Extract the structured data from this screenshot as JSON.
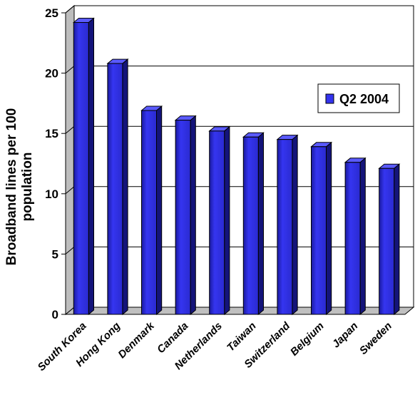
{
  "chart_data": {
    "type": "bar",
    "title": "",
    "xlabel": "",
    "ylabel": "Broadband lines per 100 population",
    "ylabel_lines": [
      "Broadband lines per 100",
      "population"
    ],
    "ylim": [
      0,
      25
    ],
    "yticks": [
      "0",
      "5",
      "10",
      "15",
      "20",
      "25"
    ],
    "grid": true,
    "legend_position": "right",
    "categories": [
      "South Korea",
      "Hong Kong",
      "Denmark",
      "Canada",
      "Netherlands",
      "Taiwan",
      "Switzerland",
      "Belgium",
      "Japan",
      "Sweden"
    ],
    "series": [
      {
        "name": "Q2 2004",
        "color": "#3333ee",
        "values": [
          24.2,
          20.8,
          16.9,
          16.1,
          15.2,
          14.7,
          14.5,
          13.9,
          12.6,
          12.1
        ]
      }
    ]
  }
}
